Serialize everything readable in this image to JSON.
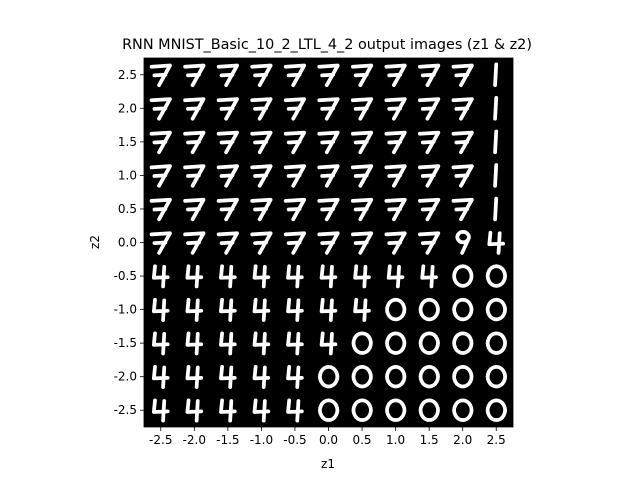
{
  "chart_data": {
    "type": "heatmap",
    "title": "RNN MNIST_Basic_10_2_LTL_4_2 output images (z1 & z2)",
    "xlabel": "z1",
    "ylabel": "z2",
    "x_ticks": [
      "-2.5",
      "-2.0",
      "-1.5",
      "-1.0",
      "-0.5",
      "0.0",
      "0.5",
      "1.0",
      "1.5",
      "2.0",
      "2.5"
    ],
    "y_ticks": [
      "2.5",
      "2.0",
      "1.5",
      "1.0",
      "0.5",
      "0.0",
      "-0.5",
      "-1.0",
      "-1.5",
      "-2.0",
      "-2.5"
    ],
    "x_values": [
      -2.5,
      -2.0,
      -1.5,
      -1.0,
      -0.5,
      0.0,
      0.5,
      1.0,
      1.5,
      2.0,
      2.5
    ],
    "y_values": [
      2.5,
      2.0,
      1.5,
      1.0,
      0.5,
      0.0,
      -0.5,
      -1.0,
      -1.5,
      -2.0,
      -2.5
    ],
    "xlim": [
      -2.75,
      2.75
    ],
    "ylim": [
      -2.75,
      2.75
    ],
    "grid": false,
    "background_color": "#000000",
    "foreground_color": "#ffffff",
    "digit_grid": [
      [
        "7",
        "7",
        "7",
        "7",
        "7",
        "7",
        "7",
        "7",
        "7",
        "7",
        "1"
      ],
      [
        "7",
        "7",
        "7",
        "7",
        "7",
        "7",
        "7",
        "7",
        "7",
        "7",
        "1"
      ],
      [
        "7",
        "7",
        "7",
        "7",
        "7",
        "7",
        "7",
        "7",
        "7",
        "7",
        "1"
      ],
      [
        "7",
        "7",
        "7",
        "7",
        "7",
        "7",
        "7",
        "7",
        "7",
        "7",
        "1"
      ],
      [
        "7",
        "7",
        "7",
        "7",
        "7",
        "7",
        "7",
        "7",
        "7",
        "7",
        "1"
      ],
      [
        "7",
        "7",
        "7",
        "7",
        "7",
        "7",
        "7",
        "7",
        "7",
        "9",
        "4"
      ],
      [
        "4",
        "4",
        "4",
        "4",
        "4",
        "4",
        "4",
        "4",
        "4",
        "0",
        "0"
      ],
      [
        "4",
        "4",
        "4",
        "4",
        "4",
        "4",
        "4",
        "0",
        "0",
        "0",
        "0"
      ],
      [
        "4",
        "4",
        "4",
        "4",
        "4",
        "4",
        "0",
        "0",
        "0",
        "0",
        "0"
      ],
      [
        "4",
        "4",
        "4",
        "4",
        "4",
        "0",
        "0",
        "0",
        "0",
        "0",
        "0"
      ],
      [
        "4",
        "4",
        "4",
        "4",
        "4",
        "0",
        "0",
        "0",
        "0",
        "0",
        "0"
      ]
    ]
  }
}
